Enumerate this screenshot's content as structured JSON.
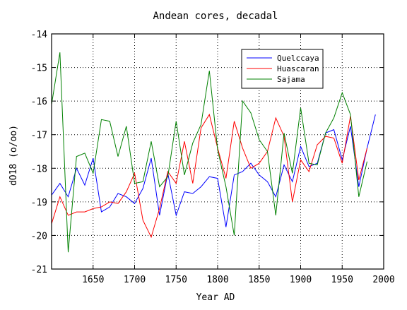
{
  "chart_data": {
    "type": "line",
    "title": "Andean cores, decadal",
    "xlabel": "Year AD",
    "ylabel": "dO18 (o/oo)",
    "xlim": [
      1600,
      2000
    ],
    "ylim": [
      -21,
      -14
    ],
    "xticks": [
      1650,
      1700,
      1750,
      1800,
      1850,
      1900,
      1950,
      2000
    ],
    "xtick_labels": [
      "1650",
      "1700",
      "1750",
      "1800",
      "1850",
      "1900",
      "1950",
      "2000"
    ],
    "yticks": [
      -21,
      -20,
      -19,
      -18,
      -17,
      -16,
      -15,
      -14
    ],
    "ytick_labels": [
      "-21",
      "-20",
      "-19",
      "-18",
      "-17",
      "-16",
      "-15",
      "-14"
    ],
    "grid": true,
    "legend_position": "top-right",
    "series": [
      {
        "name": "Quelccaya",
        "color": "#0000ff",
        "x": [
          1600,
          1610,
          1620,
          1630,
          1640,
          1650,
          1660,
          1670,
          1680,
          1690,
          1700,
          1710,
          1720,
          1730,
          1740,
          1750,
          1760,
          1770,
          1780,
          1790,
          1800,
          1810,
          1820,
          1830,
          1840,
          1850,
          1860,
          1870,
          1880,
          1890,
          1900,
          1910,
          1920,
          1930,
          1940,
          1950,
          1960,
          1970,
          1980,
          1990
        ],
        "y": [
          -18.8,
          -18.45,
          -18.85,
          -18.0,
          -18.5,
          -17.7,
          -19.3,
          -19.15,
          -18.75,
          -18.85,
          -19.05,
          -18.6,
          -17.7,
          -19.4,
          -18.15,
          -19.4,
          -18.7,
          -18.75,
          -18.55,
          -18.25,
          -18.3,
          -19.75,
          -18.2,
          -18.1,
          -17.85,
          -18.2,
          -18.4,
          -18.85,
          -17.9,
          -18.4,
          -17.35,
          -17.95,
          -17.85,
          -16.95,
          -16.85,
          -17.75,
          -16.75,
          -18.55,
          -17.4,
          -16.4
        ]
      },
      {
        "name": "Huascaran",
        "color": "#ff0000",
        "x": [
          1600,
          1610,
          1620,
          1630,
          1640,
          1650,
          1660,
          1670,
          1680,
          1690,
          1700,
          1710,
          1720,
          1730,
          1740,
          1750,
          1760,
          1770,
          1780,
          1790,
          1800,
          1810,
          1820,
          1830,
          1840,
          1850,
          1860,
          1870,
          1880,
          1890,
          1900,
          1910,
          1920,
          1930,
          1940,
          1950,
          1960,
          1970,
          1980
        ],
        "y": [
          -19.65,
          -18.85,
          -19.4,
          -19.3,
          -19.3,
          -19.2,
          -19.15,
          -19.0,
          -19.05,
          -18.7,
          -18.15,
          -19.55,
          -20.05,
          -19.2,
          -18.1,
          -18.45,
          -17.2,
          -18.45,
          -16.8,
          -16.4,
          -17.4,
          -18.3,
          -16.6,
          -17.4,
          -18.0,
          -17.85,
          -17.5,
          -16.5,
          -17.05,
          -19.0,
          -17.75,
          -18.1,
          -17.3,
          -17.05,
          -17.1,
          -17.85,
          -16.45,
          -18.35,
          -17.4
        ]
      },
      {
        "name": "Sajama",
        "color": "#008000",
        "x": [
          1600,
          1610,
          1620,
          1630,
          1640,
          1650,
          1660,
          1670,
          1680,
          1690,
          1700,
          1710,
          1720,
          1730,
          1740,
          1750,
          1760,
          1770,
          1780,
          1790,
          1800,
          1810,
          1820,
          1830,
          1840,
          1850,
          1860,
          1870,
          1880,
          1890,
          1900,
          1910,
          1920,
          1930,
          1940,
          1950,
          1960,
          1970,
          1980
        ],
        "y": [
          -16.1,
          -14.55,
          -20.5,
          -17.65,
          -17.55,
          -18.15,
          -16.55,
          -16.6,
          -17.65,
          -16.75,
          -18.45,
          -18.4,
          -17.2,
          -18.55,
          -18.25,
          -16.6,
          -18.2,
          -17.25,
          -16.7,
          -15.1,
          -17.45,
          -18.55,
          -20.0,
          -16.0,
          -16.35,
          -17.15,
          -17.5,
          -19.4,
          -16.95,
          -18.15,
          -16.2,
          -17.85,
          -17.9,
          -16.95,
          -16.5,
          -15.75,
          -16.4,
          -18.85,
          -17.8
        ]
      }
    ]
  }
}
